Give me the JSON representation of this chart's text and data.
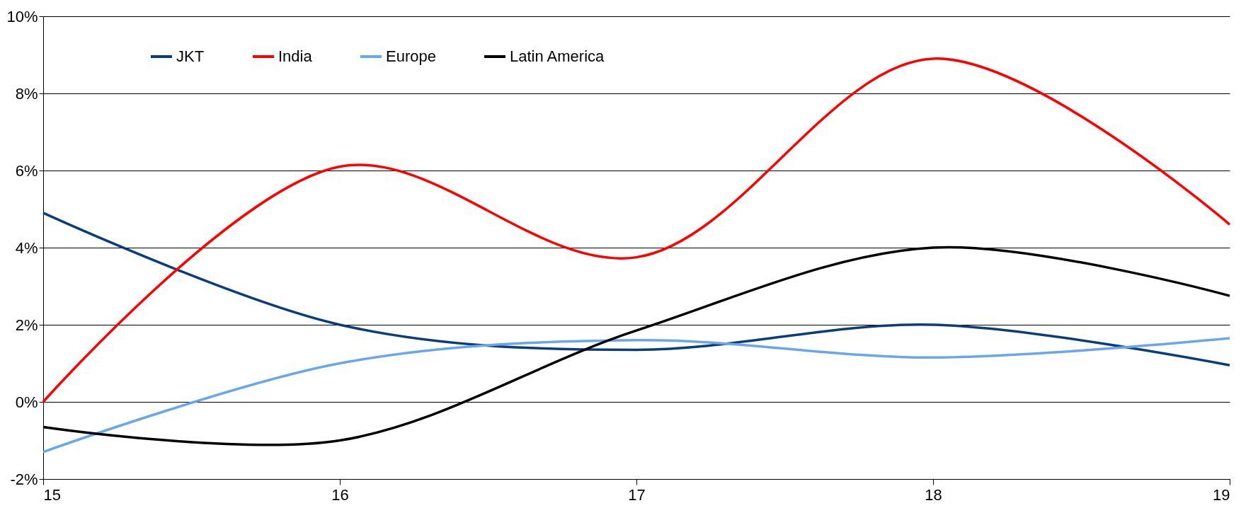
{
  "chart_data": {
    "type": "line",
    "x": [
      15,
      16,
      17,
      18,
      19
    ],
    "xlim": [
      15,
      19
    ],
    "xticks": [
      15,
      16,
      17,
      18,
      19
    ],
    "ylim": [
      -2,
      10
    ],
    "yticks": [
      {
        "value": -2,
        "label": "-2%"
      },
      {
        "value": 0,
        "label": "0%"
      },
      {
        "value": 2,
        "label": "2%"
      },
      {
        "value": 4,
        "label": "4%"
      },
      {
        "value": 6,
        "label": "6%"
      },
      {
        "value": 8,
        "label": "8%"
      },
      {
        "value": 10,
        "label": "10%"
      }
    ],
    "grid": "y",
    "legend": "top left",
    "line_style": "solid",
    "marker": "none",
    "series": [
      {
        "name": "JKT",
        "color": "#0b3d7c",
        "values": [
          4.9,
          2.0,
          1.35,
          2.0,
          0.95
        ]
      },
      {
        "name": "India",
        "color": "#ff0000",
        "values": [
          0,
          6.1,
          3.75,
          8.9,
          4.6
        ]
      },
      {
        "name": "Europe",
        "color": "#6aa6ee",
        "values": [
          -1.3,
          1.0,
          1.6,
          1.15,
          1.65
        ]
      },
      {
        "name": "Latin America",
        "color": "#000000",
        "values": [
          -0.65,
          -1.0,
          1.85,
          4.0,
          2.75
        ]
      }
    ]
  }
}
